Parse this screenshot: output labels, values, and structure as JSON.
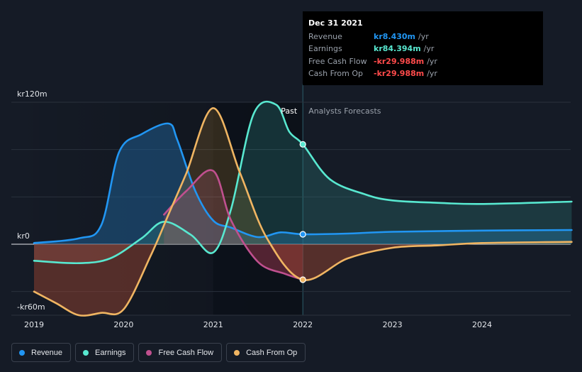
{
  "chart_data": {
    "type": "area",
    "y_axis": {
      "min": -60,
      "max": 120,
      "unit": "kr m",
      "tick_labels": [
        "kr120m",
        "kr0",
        "-kr60m"
      ]
    },
    "x_axis": {
      "min": 2019,
      "max": 2025,
      "tick_labels": [
        "2019",
        "2020",
        "2021",
        "2022",
        "2023",
        "2024"
      ]
    },
    "past_label": "Past",
    "forecast_label": "Analysts Forecasts",
    "divider_x": 2022.0,
    "highlight_x_range": [
      2021.0,
      2022.0
    ],
    "series": [
      {
        "name": "Revenue",
        "color": "#2196f3",
        "points": [
          [
            2019.0,
            1
          ],
          [
            2019.5,
            5
          ],
          [
            2019.75,
            16
          ],
          [
            2019.95,
            78
          ],
          [
            2020.2,
            93
          ],
          [
            2020.5,
            102
          ],
          [
            2020.6,
            88
          ],
          [
            2020.8,
            45
          ],
          [
            2021.0,
            20
          ],
          [
            2021.2,
            14
          ],
          [
            2021.5,
            6
          ],
          [
            2021.75,
            10
          ],
          [
            2022.0,
            8.4
          ],
          [
            2022.5,
            9
          ],
          [
            2023.0,
            10.5
          ],
          [
            2024.0,
            11.5
          ],
          [
            2025.0,
            12
          ]
        ]
      },
      {
        "name": "Earnings",
        "color": "#58e8d0",
        "points": [
          [
            2019.0,
            -14
          ],
          [
            2019.5,
            -16
          ],
          [
            2019.85,
            -12
          ],
          [
            2020.2,
            5
          ],
          [
            2020.45,
            19
          ],
          [
            2020.75,
            8
          ],
          [
            2021.0,
            -7
          ],
          [
            2021.2,
            30
          ],
          [
            2021.45,
            110
          ],
          [
            2021.7,
            118
          ],
          [
            2021.85,
            95
          ],
          [
            2022.0,
            84.4
          ],
          [
            2022.3,
            55
          ],
          [
            2022.7,
            42
          ],
          [
            2023.0,
            37
          ],
          [
            2023.5,
            35
          ],
          [
            2024.0,
            34
          ],
          [
            2025.0,
            36
          ]
        ]
      },
      {
        "name": "Free Cash Flow",
        "color": "#c0508f",
        "points": [
          [
            2020.45,
            25
          ],
          [
            2020.7,
            45
          ],
          [
            2021.0,
            62
          ],
          [
            2021.2,
            20
          ],
          [
            2021.5,
            -15
          ],
          [
            2021.8,
            -25
          ],
          [
            2022.0,
            -30
          ]
        ]
      },
      {
        "name": "Cash From Op",
        "color": "#f0b562",
        "points": [
          [
            2019.0,
            -40
          ],
          [
            2019.25,
            -50
          ],
          [
            2019.5,
            -60
          ],
          [
            2019.75,
            -58
          ],
          [
            2020.0,
            -55
          ],
          [
            2020.3,
            -10
          ],
          [
            2020.5,
            25
          ],
          [
            2020.7,
            60
          ],
          [
            2021.0,
            115
          ],
          [
            2021.3,
            60
          ],
          [
            2021.6,
            5
          ],
          [
            2022.0,
            -30
          ],
          [
            2022.5,
            -12
          ],
          [
            2023.0,
            -3
          ],
          [
            2023.5,
            -1
          ],
          [
            2024.0,
            1
          ],
          [
            2025.0,
            2
          ]
        ]
      }
    ],
    "markers": [
      {
        "series": "Revenue",
        "x": 2022.0,
        "y": 8.4
      },
      {
        "series": "Earnings",
        "x": 2022.0,
        "y": 84.4
      },
      {
        "series": "Cash From Op",
        "x": 2022.0,
        "y": -30
      }
    ]
  },
  "tooltip": {
    "date": "Dec 31 2021",
    "rows": [
      {
        "label": "Revenue",
        "value": "kr8.430m",
        "unit": "/yr",
        "color": "#2196f3"
      },
      {
        "label": "Earnings",
        "value": "kr84.394m",
        "unit": "/yr",
        "color": "#58e8d0"
      },
      {
        "label": "Free Cash Flow",
        "value": "-kr29.988m",
        "unit": "/yr",
        "color": "#ff4b4b"
      },
      {
        "label": "Cash From Op",
        "value": "-kr29.988m",
        "unit": "/yr",
        "color": "#ff4b4b"
      }
    ]
  },
  "legend": [
    {
      "label": "Revenue",
      "color": "#2196f3"
    },
    {
      "label": "Earnings",
      "color": "#58e8d0"
    },
    {
      "label": "Free Cash Flow",
      "color": "#c0508f"
    },
    {
      "label": "Cash From Op",
      "color": "#f0b562"
    }
  ]
}
